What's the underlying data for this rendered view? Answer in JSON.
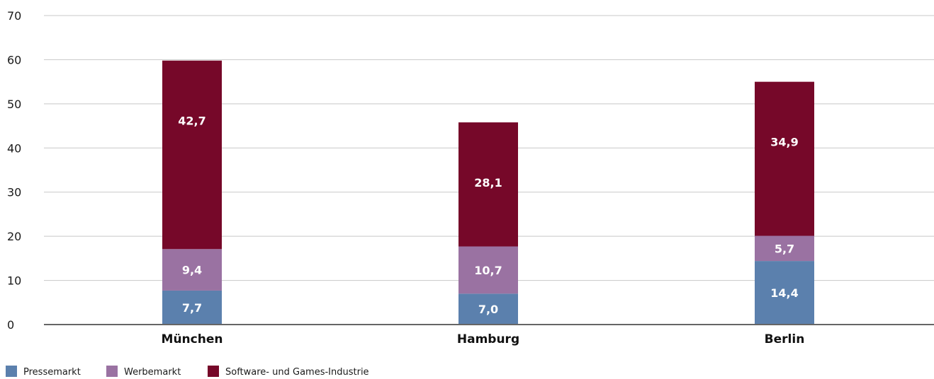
{
  "chart_data": {
    "type": "bar",
    "stacked": true,
    "categories": [
      "München",
      "Hamburg",
      "Berlin"
    ],
    "series": [
      {
        "name": "Pressemarkt",
        "values": [
          7.7,
          7.0,
          14.4
        ],
        "labels": [
          "7,7",
          "7,0",
          "14,4"
        ],
        "color": "#5b80ad"
      },
      {
        "name": "Werbemarkt",
        "values": [
          9.4,
          10.7,
          5.7
        ],
        "labels": [
          "9,4",
          "10,7",
          "5,7"
        ],
        "color": "#9a72a2"
      },
      {
        "name": "Software- und Games-Industrie",
        "values": [
          42.7,
          28.1,
          34.9
        ],
        "labels": [
          "42,7",
          "28,1",
          "34,9"
        ],
        "color": "#760829"
      }
    ],
    "yticks": [
      "0",
      "10",
      "20",
      "30",
      "40",
      "50",
      "60",
      "70"
    ],
    "ylim": [
      0,
      70
    ],
    "grid": true,
    "legend": "bottom-left",
    "title": "",
    "xlabel": "",
    "ylabel": ""
  }
}
